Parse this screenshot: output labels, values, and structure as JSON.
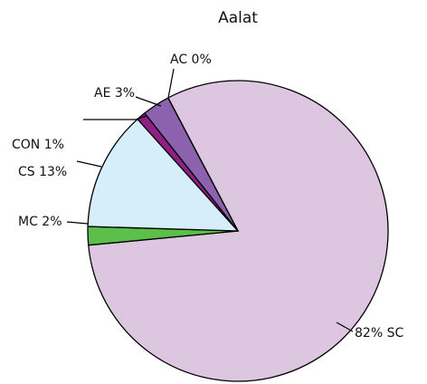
{
  "chart_data": {
    "type": "pie",
    "title": "Aalat",
    "values": [
      82,
      2,
      13,
      1,
      3,
      0
    ],
    "value_labels": [
      "82% SC",
      "MC 2%",
      "CS 13%",
      "CON 1%",
      "AE 3%",
      "AC 0%"
    ],
    "colors": [
      "#dcc6e0",
      "#5bbf4a",
      "#d5eef9",
      "#8e1f86",
      "#8c62ae",
      "#7a4ea3"
    ]
  }
}
